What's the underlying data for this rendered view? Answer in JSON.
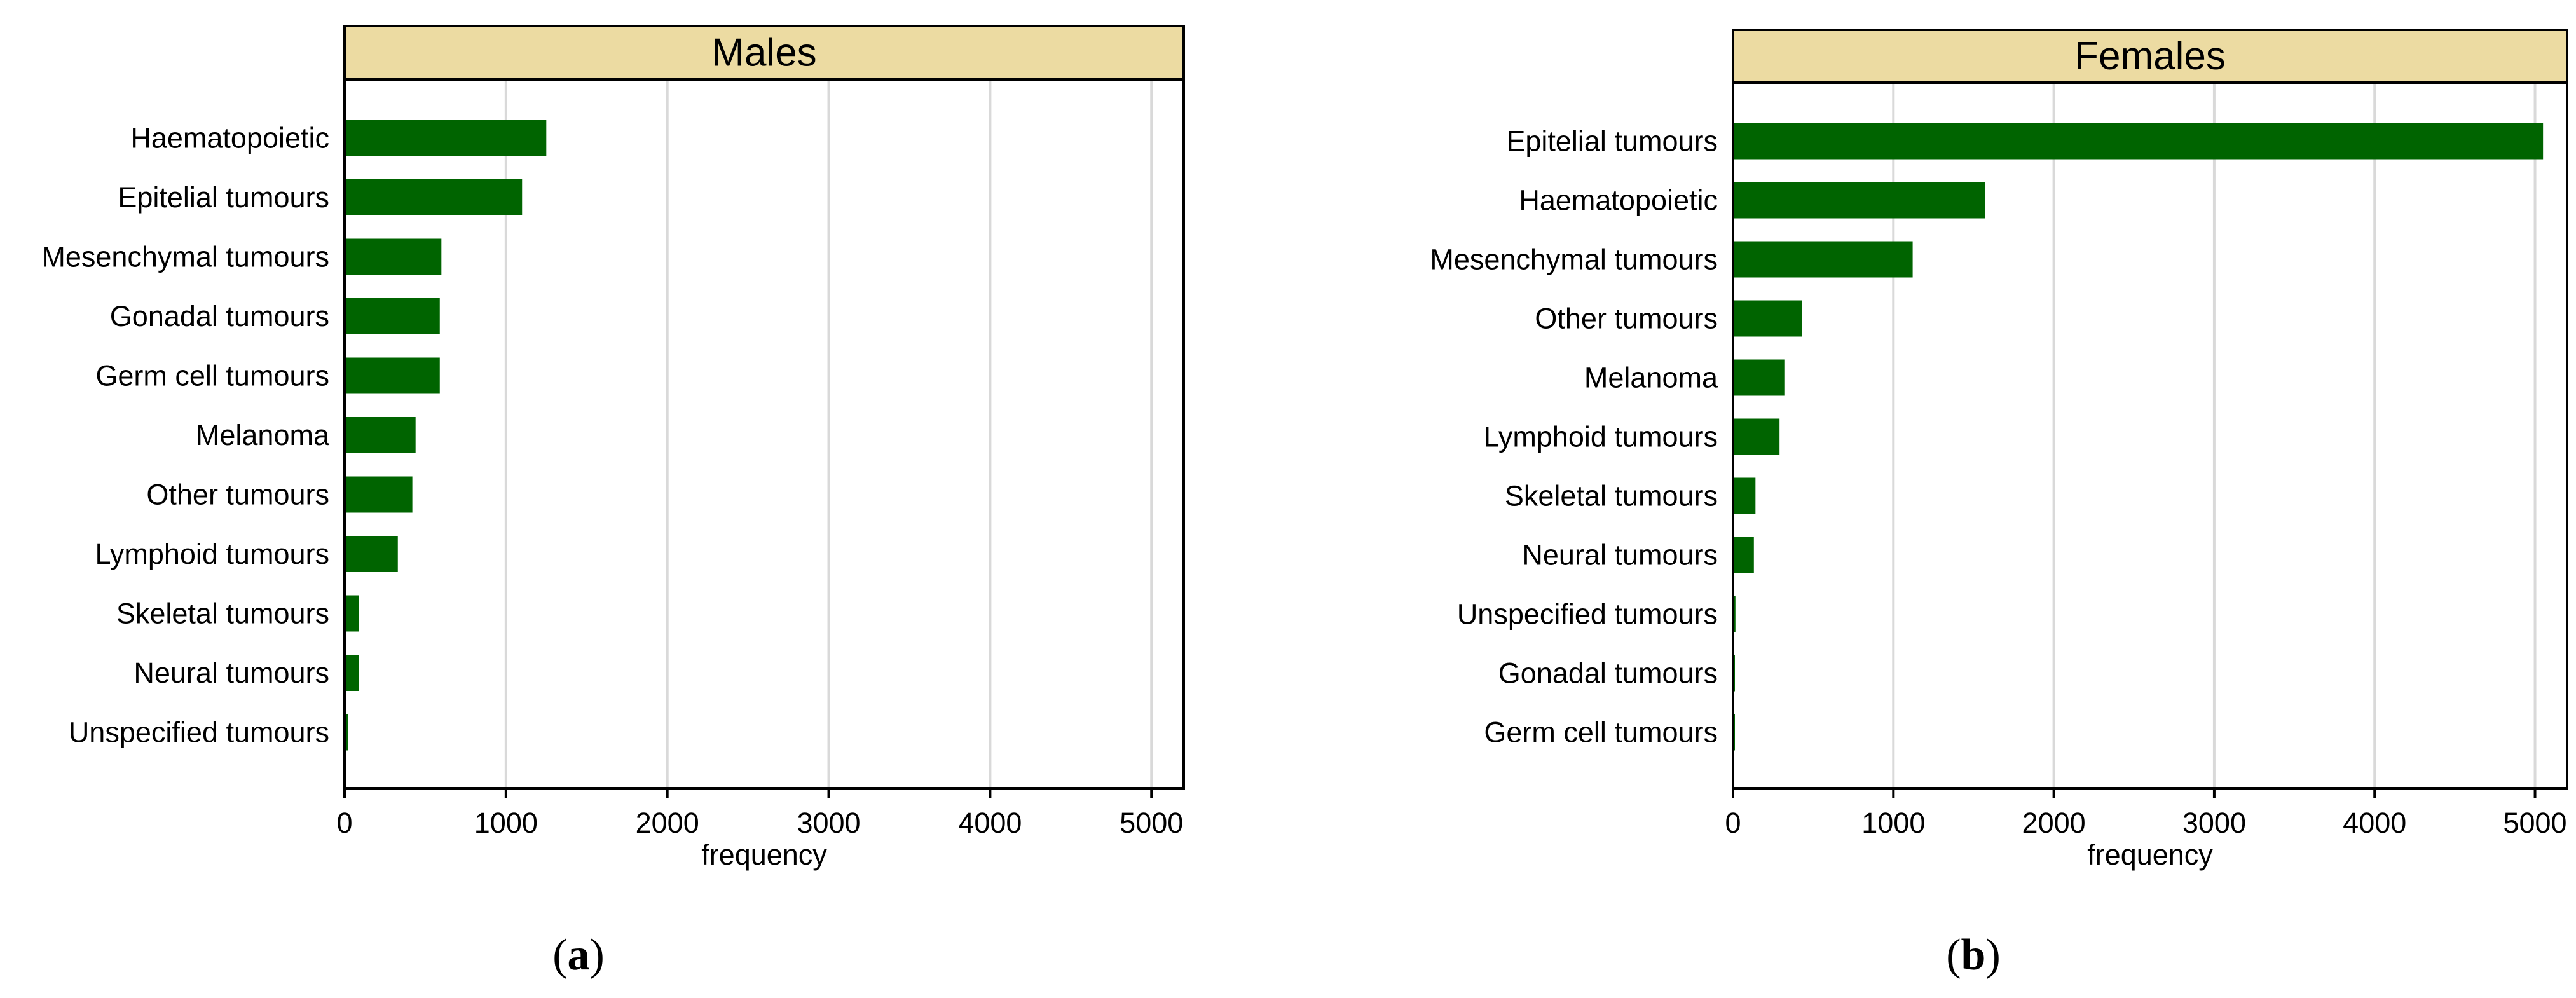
{
  "chart_data": [
    {
      "type": "bar",
      "orientation": "horizontal",
      "title": "Males",
      "panel_label": {
        "open": "(",
        "letter": "a",
        "close": ")"
      },
      "xlabel": "frequency",
      "ylabel": "",
      "xlim": [
        0,
        5200
      ],
      "xticks": [
        0,
        1000,
        2000,
        3000,
        4000,
        5000
      ],
      "grid": "vertical",
      "bar_color": "#006400",
      "header_color": "#ecdba2",
      "categories": [
        "Haematopoietic",
        "Epitelial tumours",
        "Mesenchymal tumours",
        "Gonadal tumours",
        "Germ cell tumours",
        "Melanoma",
        "Other tumours",
        "Lymphoid tumours",
        "Skeletal tumours",
        "Neural tumours",
        "Unspecified tumours"
      ],
      "values": [
        1250,
        1100,
        600,
        590,
        590,
        440,
        420,
        330,
        90,
        90,
        20
      ]
    },
    {
      "type": "bar",
      "orientation": "horizontal",
      "title": "Females",
      "panel_label": {
        "open": "(",
        "letter": "b",
        "close": ")"
      },
      "xlabel": "frequency",
      "ylabel": "",
      "xlim": [
        0,
        5200
      ],
      "xticks": [
        0,
        1000,
        2000,
        3000,
        4000,
        5000
      ],
      "grid": "vertical",
      "bar_color": "#006400",
      "header_color": "#ecdba2",
      "categories": [
        "Epitelial tumours",
        "Haematopoietic",
        "Mesenchymal tumours",
        "Other tumours",
        "Melanoma",
        "Lymphoid tumours",
        "Skeletal tumours",
        "Neural tumours",
        "Unspecified tumours",
        "Gonadal tumours",
        "Germ cell tumours"
      ],
      "values": [
        5050,
        1570,
        1120,
        430,
        320,
        290,
        140,
        130,
        15,
        5,
        5
      ]
    }
  ]
}
